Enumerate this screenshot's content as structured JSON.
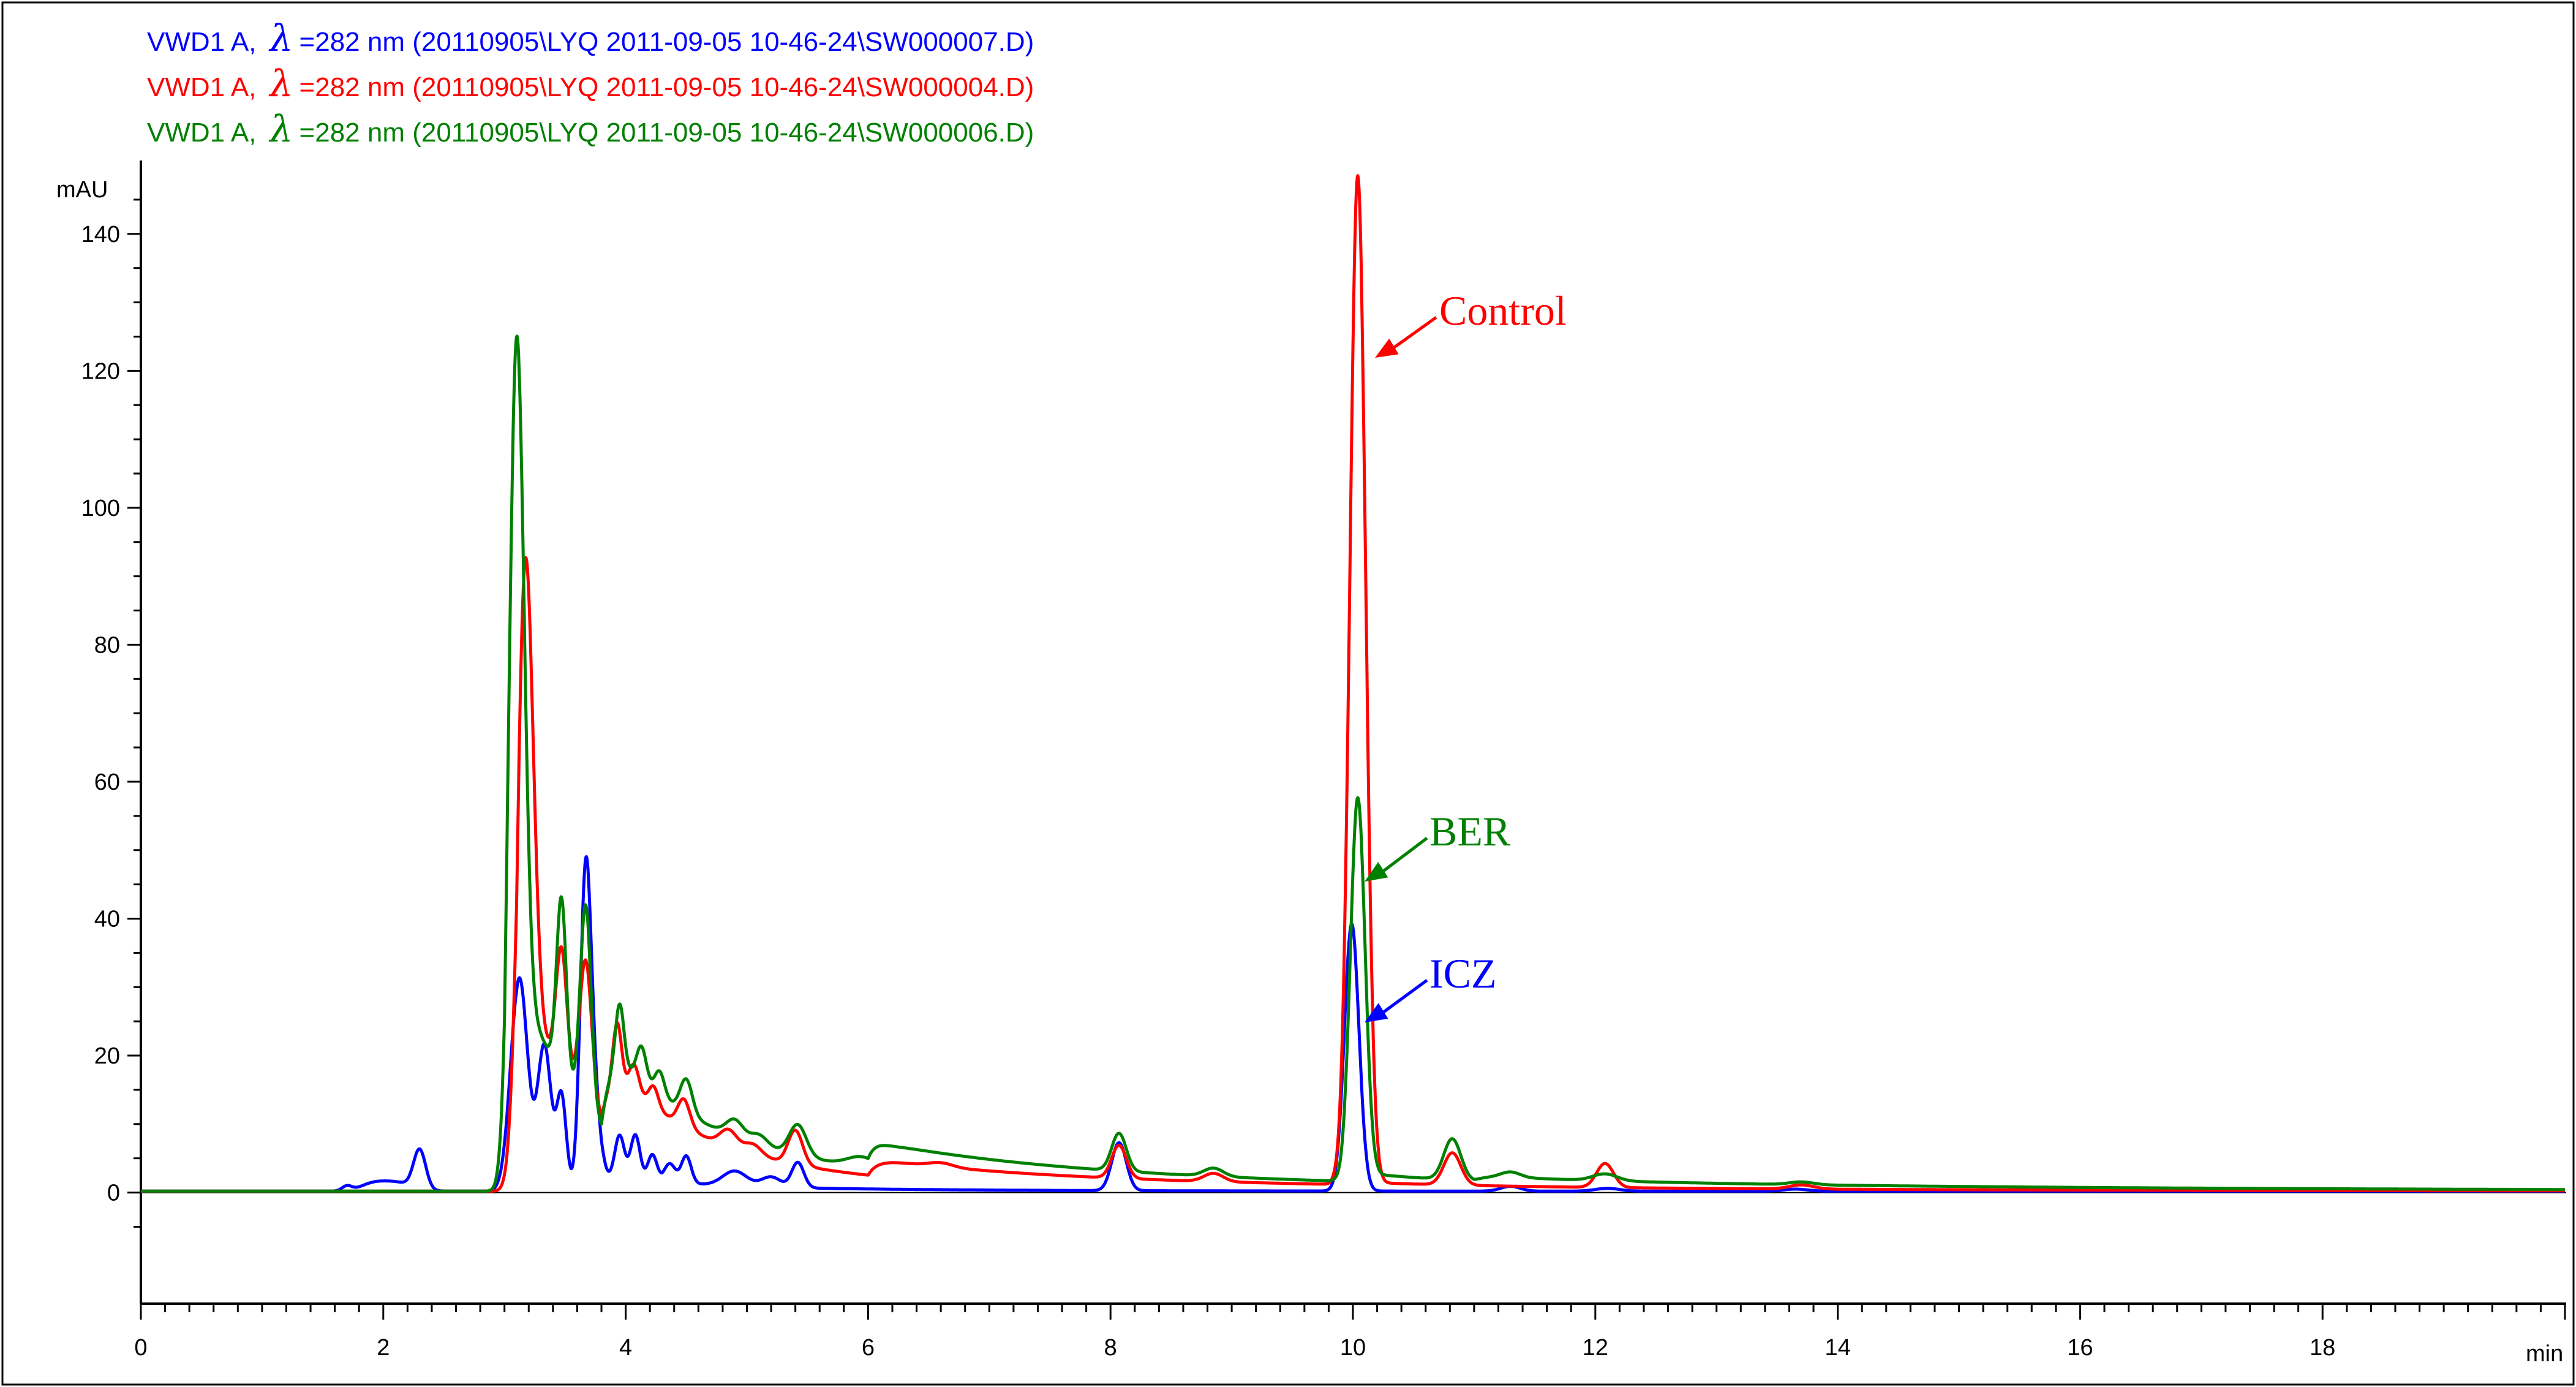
{
  "legend": [
    {
      "prefix": "VWD1 A,",
      "lambda": "λ",
      "text": "=282 nm (20110905\\LYQ 2011-09-05 10-46-24\\SW000007.D)",
      "color": "#0000ff"
    },
    {
      "prefix": "VWD1 A,",
      "lambda": "λ",
      "text": "=282 nm (20110905\\LYQ 2011-09-05 10-46-24\\SW000004.D)",
      "color": "#ff0000"
    },
    {
      "prefix": "VWD1 A,",
      "lambda": "λ",
      "text": "=282 nm (20110905\\LYQ 2011-09-05 10-46-24\\SW000006.D)",
      "color": "#008000"
    }
  ],
  "annotations": [
    {
      "text": "Control",
      "color": "#ff0000",
      "x": 10.05,
      "y": 134
    },
    {
      "text": "BER",
      "color": "#008000",
      "x": 10.05,
      "y": 53
    },
    {
      "text": "ICZ",
      "color": "#0000ff",
      "x": 10.05,
      "y": 33
    }
  ],
  "chart_data": {
    "type": "line",
    "ylabel": "mAU",
    "xlabel": "min",
    "xlim": [
      0,
      20
    ],
    "ylim": [
      -8,
      150
    ],
    "xticks": [
      0,
      2,
      4,
      6,
      8,
      10,
      12,
      14,
      16,
      18
    ],
    "yticks": [
      0,
      20,
      40,
      60,
      80,
      100,
      120,
      140
    ],
    "grid": false,
    "series": [
      {
        "name": "SW000007.D",
        "color": "#0000ff",
        "peaks": [
          [
            1.7,
            0.7,
            0.04
          ],
          [
            1.9,
            0.8,
            0.1
          ],
          [
            2.1,
            1.3,
            0.14
          ],
          [
            2.3,
            5.7,
            0.05
          ],
          [
            3.12,
            30.5,
            0.07
          ],
          [
            3.33,
            20.5,
            0.055
          ],
          [
            3.47,
            13.5,
            0.04
          ],
          [
            3.67,
            45.5,
            0.045
          ],
          [
            3.75,
            11.0,
            0.05
          ],
          [
            3.95,
            6.5,
            0.04
          ],
          [
            4.08,
            7.0,
            0.04
          ],
          [
            4.22,
            4.5,
            0.04
          ],
          [
            4.36,
            3.0,
            0.05
          ],
          [
            4.5,
            4.0,
            0.04
          ],
          [
            4.9,
            2.2,
            0.1
          ],
          [
            5.2,
            1.5,
            0.08
          ],
          [
            5.42,
            3.7,
            0.05
          ],
          [
            8.07,
            7.0,
            0.06
          ],
          [
            9.99,
            39.0,
            0.06
          ],
          [
            11.3,
            0.7,
            0.08
          ],
          [
            12.1,
            0.4,
            0.1
          ],
          [
            13.65,
            0.3,
            0.1
          ]
        ],
        "bumps": [
          [
            3.1,
            10,
            3.2,
            0.15
          ],
          [
            3.8,
            4,
            3.2,
            0.3
          ],
          [
            4.3,
            4.5,
            1.0,
            1.5
          ]
        ],
        "baseline": 0.2
      },
      {
        "name": "SW000004.D",
        "color": "#ff0000",
        "peaks": [
          [
            3.17,
            75.0,
            0.065
          ],
          [
            3.47,
            18.0,
            0.045
          ],
          [
            3.67,
            21.0,
            0.05
          ],
          [
            3.93,
            9.0,
            0.035
          ],
          [
            4.07,
            4.0,
            0.04
          ],
          [
            4.23,
            3.0,
            0.04
          ],
          [
            4.48,
            4.0,
            0.05
          ],
          [
            4.85,
            2.5,
            0.07
          ],
          [
            5.05,
            1.5,
            0.07
          ],
          [
            5.4,
            5.0,
            0.06
          ],
          [
            6.6,
            0.6,
            0.1
          ],
          [
            8.07,
            4.8,
            0.06
          ],
          [
            8.85,
            1.2,
            0.08
          ],
          [
            10.04,
            147.0,
            0.065
          ],
          [
            10.82,
            4.7,
            0.07
          ],
          [
            12.08,
            3.5,
            0.07
          ],
          [
            13.7,
            0.6,
            0.1
          ]
        ],
        "bumps": [
          [
            3.1,
            10,
            33,
            0.6
          ],
          [
            3.8,
            5,
            10,
            1.4
          ],
          [
            6.0,
            9.8,
            2.5,
            3.6
          ],
          [
            9.8,
            10.3,
            0.5,
            1.0
          ]
        ],
        "baseline": 0.2
      },
      {
        "name": "SW000006.D",
        "color": "#008000",
        "peaks": [
          [
            3.1,
            101.0,
            0.06
          ],
          [
            3.47,
            26.0,
            0.04
          ],
          [
            3.67,
            30.0,
            0.045
          ],
          [
            3.95,
            9.5,
            0.035
          ],
          [
            4.13,
            5.0,
            0.04
          ],
          [
            4.28,
            3.5,
            0.04
          ],
          [
            4.5,
            5.0,
            0.05
          ],
          [
            4.9,
            2.5,
            0.07
          ],
          [
            5.1,
            1.5,
            0.07
          ],
          [
            5.42,
            4.5,
            0.07
          ],
          [
            5.95,
            1.5,
            0.12
          ],
          [
            8.07,
            5.5,
            0.06
          ],
          [
            8.85,
            1.2,
            0.08
          ],
          [
            10.04,
            55.0,
            0.06
          ],
          [
            10.82,
            6.0,
            0.07
          ],
          [
            11.3,
            0.8,
            0.08
          ],
          [
            12.08,
            1.0,
            0.1
          ],
          [
            13.7,
            0.4,
            0.1
          ]
        ],
        "bumps": [
          [
            3.0,
            10,
            40,
            0.55
          ],
          [
            3.8,
            5,
            14,
            1.5
          ],
          [
            6.0,
            9.9,
            4.0,
            3.3
          ],
          [
            9.9,
            11.0,
            1.5,
            1.0
          ],
          [
            11.0,
            20,
            0.8,
            6.0
          ]
        ],
        "baseline": 0.2
      }
    ]
  }
}
